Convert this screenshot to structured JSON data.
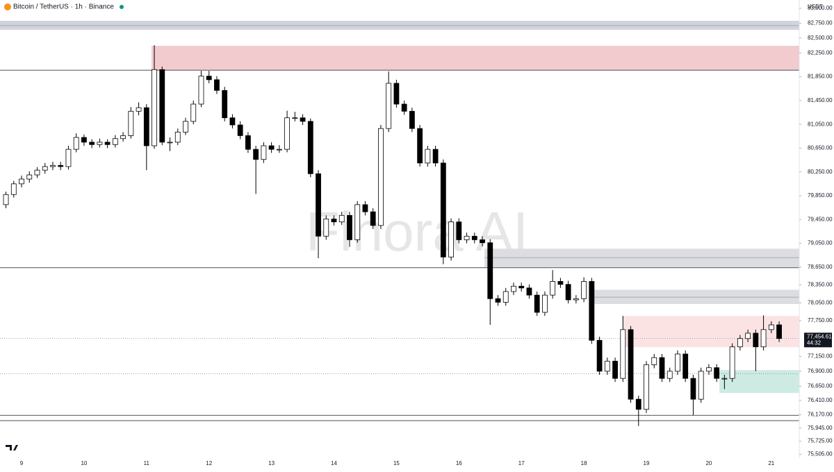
{
  "chart_data": {
    "type": "candlestick",
    "title": "Bitcoin / TetherUS · 1h · Binance",
    "currency": "USDT",
    "watermark": "Finora AI",
    "xlim": [
      8.655,
      21.447
    ],
    "xticks": [
      9,
      10,
      11,
      12,
      13,
      14,
      15,
      16,
      17,
      18,
      19,
      20,
      21
    ],
    "ylim": [
      75440,
      83140
    ],
    "yticks": [
      {
        "value": 83000,
        "label": "83,000.00"
      },
      {
        "value": 82750,
        "label": "82,750.00"
      },
      {
        "value": 82500,
        "label": "82,500.00"
      },
      {
        "value": 82250,
        "label": "82,250.00"
      },
      {
        "value": 81850,
        "label": "81,850.00"
      },
      {
        "value": 81450,
        "label": "81,450.00"
      },
      {
        "value": 81050,
        "label": "81,050.00"
      },
      {
        "value": 80650,
        "label": "80,650.00"
      },
      {
        "value": 80250,
        "label": "80,250.00"
      },
      {
        "value": 79850,
        "label": "79,850.00"
      },
      {
        "value": 79450,
        "label": "79,450.00"
      },
      {
        "value": 79050,
        "label": "79,050.00"
      },
      {
        "value": 78650,
        "label": "78,650.00"
      },
      {
        "value": 78350,
        "label": "78,350.00"
      },
      {
        "value": 78050,
        "label": "78,050.00"
      },
      {
        "value": 77750,
        "label": "77,750.00"
      },
      {
        "value": 77150,
        "label": "77,150.00"
      },
      {
        "value": 76900,
        "label": "76,900.00"
      },
      {
        "value": 76650,
        "label": "76,650.00"
      },
      {
        "value": 76410,
        "label": "76,410.00"
      },
      {
        "value": 76170,
        "label": "76,170.00"
      },
      {
        "value": 75945,
        "label": "75,945.00"
      },
      {
        "value": 75725,
        "label": "75,725.00"
      },
      {
        "value": 75505,
        "label": "75,505.00"
      }
    ],
    "last_price": {
      "value": 77454.61,
      "label": "77,454.61"
    },
    "countdown": "44:32",
    "up_color": "#ffffff",
    "down_color": "#000000",
    "zones": [
      {
        "low": 82640,
        "high": 82790,
        "from": 8.655,
        "mid": 82710,
        "color": "#d1d4dc"
      },
      {
        "low": 81960,
        "high": 82370,
        "from": 11.08,
        "color": "#f2cbcf"
      },
      {
        "low": 78650,
        "high": 78960,
        "from": 16.41,
        "mid": 78810,
        "color": "#dcdde1"
      },
      {
        "low": 78030,
        "high": 78270,
        "from": 18.09,
        "mid": 78145,
        "color": "#dcdde1"
      },
      {
        "low": 77305,
        "high": 77830,
        "from": 18.63,
        "color": "#fbe3e4"
      },
      {
        "low": 76535,
        "high": 76920,
        "from": 20.17,
        "color": "#cdebe3"
      }
    ],
    "lines": [
      81960,
      78640,
      76160,
      76070
    ],
    "dotted_lines": [
      76860
    ],
    "x": [
      8.75,
      8.875,
      9,
      9.125,
      9.25,
      9.375,
      9.5,
      9.625,
      9.75,
      9.875,
      10,
      10.125,
      10.25,
      10.375,
      10.5,
      10.625,
      10.75,
      10.875,
      11,
      11.125,
      11.25,
      11.375,
      11.5,
      11.625,
      11.75,
      11.875,
      12,
      12.125,
      12.25,
      12.375,
      12.5,
      12.625,
      12.75,
      12.875,
      13,
      13.125,
      13.25,
      13.375,
      13.5,
      13.625,
      13.75,
      13.875,
      14,
      14.125,
      14.25,
      14.375,
      14.5,
      14.625,
      14.75,
      14.875,
      15,
      15.125,
      15.25,
      15.375,
      15.5,
      15.625,
      15.75,
      15.875,
      16,
      16.125,
      16.25,
      16.375,
      16.5,
      16.625,
      16.75,
      16.875,
      17,
      17.125,
      17.25,
      17.375,
      17.5,
      17.625,
      17.75,
      17.875,
      18,
      18.125,
      18.25,
      18.375,
      18.5,
      18.625,
      18.75,
      18.875,
      19,
      19.125,
      19.25,
      19.375,
      19.5,
      19.625,
      19.75,
      19.875,
      20,
      20.125,
      20.25,
      20.375,
      20.5,
      20.625,
      20.75,
      20.875,
      21,
      21.125
    ],
    "ohlc": [
      [
        79700,
        79920,
        79640,
        79870
      ],
      [
        79870,
        80100,
        79820,
        80050
      ],
      [
        80050,
        80190,
        79990,
        80130
      ],
      [
        80130,
        80260,
        80070,
        80200
      ],
      [
        80200,
        80330,
        80150,
        80280
      ],
      [
        80280,
        80400,
        80220,
        80340
      ],
      [
        80340,
        80420,
        80280,
        80360
      ],
      [
        80360,
        80420,
        80280,
        80340
      ],
      [
        80340,
        80690,
        80290,
        80630
      ],
      [
        80630,
        80900,
        80580,
        80830
      ],
      [
        80830,
        80880,
        80690,
        80750
      ],
      [
        80750,
        80800,
        80650,
        80710
      ],
      [
        80710,
        80810,
        80660,
        80750
      ],
      [
        80750,
        80800,
        80650,
        80710
      ],
      [
        80710,
        80870,
        80660,
        80810
      ],
      [
        80810,
        80920,
        80760,
        80860
      ],
      [
        80860,
        81340,
        80810,
        81270
      ],
      [
        81270,
        81420,
        81200,
        81330
      ],
      [
        81330,
        81390,
        80280,
        80690
      ],
      [
        80690,
        82380,
        80640,
        81970
      ],
      [
        81970,
        82020,
        80700,
        80750
      ],
      [
        80750,
        80830,
        80600,
        80750
      ],
      [
        80750,
        80980,
        80700,
        80920
      ],
      [
        80920,
        81160,
        80870,
        81100
      ],
      [
        81100,
        81450,
        81050,
        81390
      ],
      [
        81390,
        81950,
        81340,
        81860
      ],
      [
        81860,
        81950,
        81740,
        81800
      ],
      [
        81800,
        81860,
        81560,
        81620
      ],
      [
        81620,
        81680,
        81100,
        81160
      ],
      [
        81160,
        81220,
        80980,
        81040
      ],
      [
        81040,
        81100,
        80800,
        80860
      ],
      [
        80860,
        80920,
        80570,
        80630
      ],
      [
        80630,
        80690,
        79880,
        80460
      ],
      [
        80460,
        80750,
        80400,
        80690
      ],
      [
        80690,
        80750,
        80570,
        80630
      ],
      [
        80630,
        80700,
        80570,
        80630
      ],
      [
        80630,
        81280,
        80580,
        81160
      ],
      [
        81160,
        81260,
        81100,
        81160
      ],
      [
        81160,
        81220,
        81040,
        81100
      ],
      [
        81100,
        81150,
        80160,
        80220
      ],
      [
        80220,
        80280,
        78800,
        79170
      ],
      [
        79170,
        79520,
        79110,
        79460
      ],
      [
        79460,
        79520,
        79350,
        79410
      ],
      [
        79410,
        79580,
        79360,
        79520
      ],
      [
        79520,
        79580,
        78990,
        79110
      ],
      [
        79110,
        79760,
        79060,
        79700
      ],
      [
        79700,
        79760,
        79520,
        79580
      ],
      [
        79580,
        79640,
        79290,
        79350
      ],
      [
        79350,
        81040,
        79290,
        80980
      ],
      [
        80980,
        81940,
        80920,
        81740
      ],
      [
        81740,
        81800,
        81330,
        81390
      ],
      [
        81390,
        81450,
        81210,
        81270
      ],
      [
        81270,
        81330,
        80920,
        80980
      ],
      [
        80980,
        81040,
        80340,
        80400
      ],
      [
        80400,
        80690,
        80340,
        80630
      ],
      [
        80630,
        80690,
        80340,
        80400
      ],
      [
        80400,
        80460,
        78700,
        78820
      ],
      [
        78820,
        79470,
        78760,
        79410
      ],
      [
        79410,
        79470,
        79050,
        79110
      ],
      [
        79110,
        79230,
        79050,
        79170
      ],
      [
        79170,
        79230,
        79050,
        79110
      ],
      [
        79110,
        79170,
        79000,
        79060
      ],
      [
        79060,
        79120,
        77680,
        78120
      ],
      [
        78120,
        78180,
        78000,
        78060
      ],
      [
        78060,
        78300,
        78000,
        78240
      ],
      [
        78240,
        78390,
        78180,
        78330
      ],
      [
        78330,
        78390,
        78240,
        78300
      ],
      [
        78300,
        78360,
        78120,
        78180
      ],
      [
        78180,
        78240,
        77830,
        77890
      ],
      [
        77890,
        78240,
        77830,
        78180
      ],
      [
        78180,
        78600,
        78120,
        78410
      ],
      [
        78410,
        78470,
        78300,
        78360
      ],
      [
        78360,
        78420,
        78040,
        78100
      ],
      [
        78100,
        78180,
        78040,
        78120
      ],
      [
        78120,
        78480,
        78060,
        78410
      ],
      [
        78410,
        78470,
        77360,
        77420
      ],
      [
        77420,
        77480,
        76840,
        76900
      ],
      [
        76900,
        77130,
        76840,
        77070
      ],
      [
        77070,
        77130,
        76720,
        76780
      ],
      [
        76780,
        77830,
        76720,
        77600
      ],
      [
        77600,
        77660,
        76370,
        76430
      ],
      [
        76430,
        76490,
        75980,
        76260
      ],
      [
        76260,
        77070,
        76200,
        77010
      ],
      [
        77010,
        77190,
        76950,
        77130
      ],
      [
        77130,
        77190,
        76720,
        76780
      ],
      [
        76780,
        76960,
        76720,
        76900
      ],
      [
        76900,
        77250,
        76840,
        77190
      ],
      [
        77190,
        77250,
        76720,
        76780
      ],
      [
        76780,
        76840,
        76160,
        76430
      ],
      [
        76430,
        76960,
        76370,
        76900
      ],
      [
        76900,
        77020,
        76840,
        76960
      ],
      [
        76960,
        77020,
        76720,
        76780
      ],
      [
        76780,
        76840,
        76600,
        76780
      ],
      [
        76780,
        77370,
        76720,
        77310
      ],
      [
        77310,
        77510,
        77250,
        77450
      ],
      [
        77450,
        77600,
        77390,
        77540
      ],
      [
        77540,
        77600,
        76900,
        77310
      ],
      [
        77310,
        77840,
        77250,
        77600
      ],
      [
        77600,
        77740,
        77540,
        77680
      ],
      [
        77680,
        77740,
        77390,
        77450
      ]
    ]
  }
}
